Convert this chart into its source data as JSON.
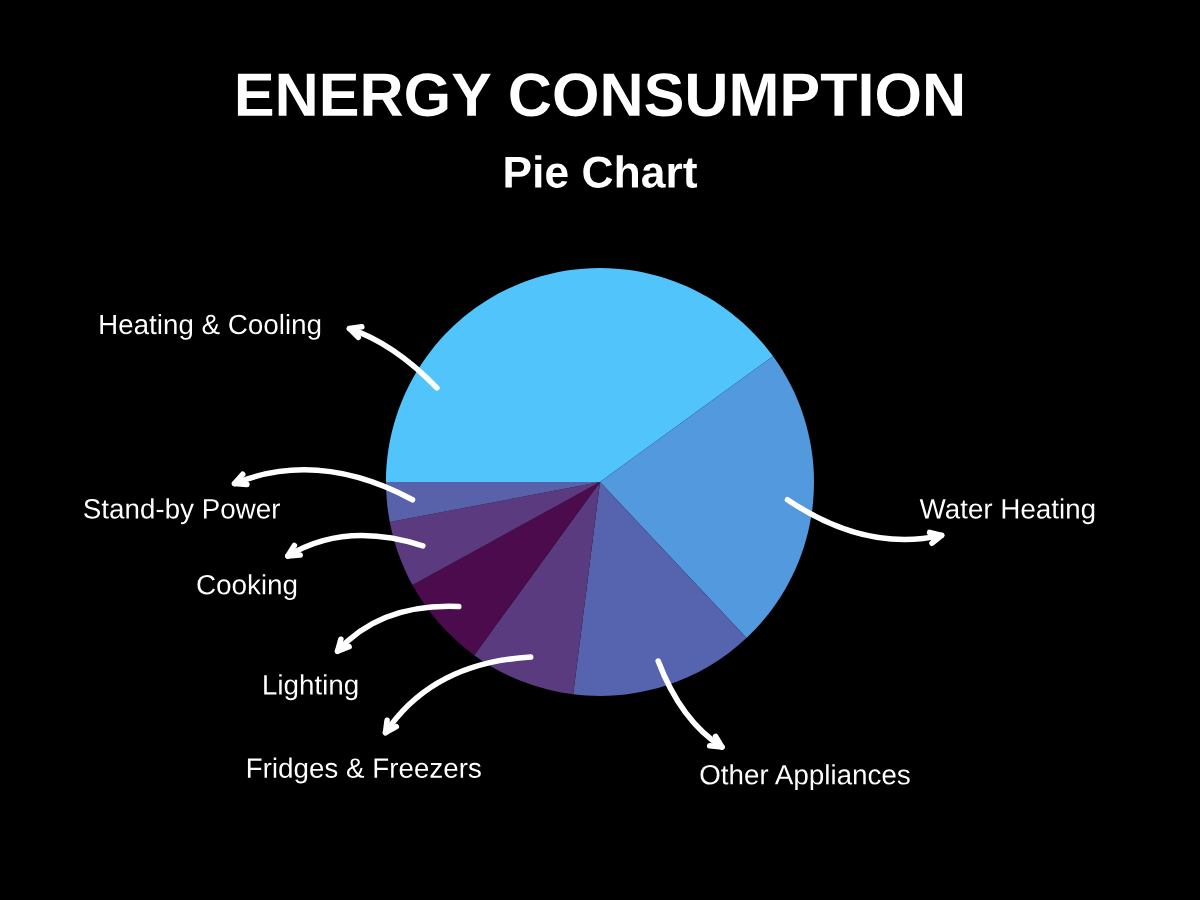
{
  "chart_data": {
    "type": "pie",
    "title": "ENERGY CONSUMPTION",
    "subtitle": "Pie Chart",
    "categories": [
      "Heating & Cooling",
      "Water Heating",
      "Other Appliances",
      "Fridges & Freezers",
      "Lighting",
      "Cooking",
      "Stand-by Power"
    ],
    "values": [
      40,
      23,
      14,
      8,
      7,
      5,
      3
    ],
    "colors": [
      "#50c4fb",
      "#5399dd",
      "#5663ae",
      "#5b3b7f",
      "#4b0b4c",
      "#5c3a7f",
      "#5862ab"
    ]
  }
}
